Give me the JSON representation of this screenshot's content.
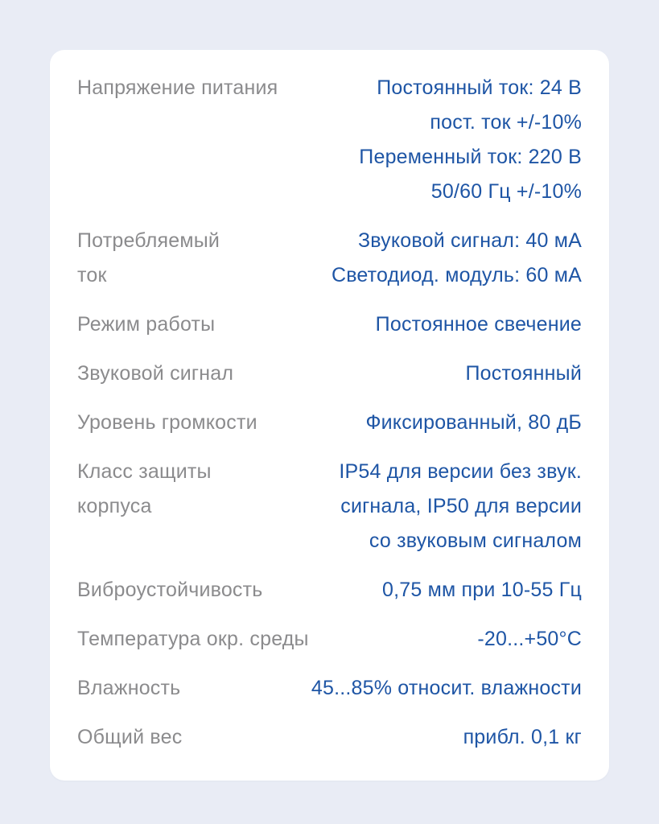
{
  "colors": {
    "background": "#E9ECF5",
    "card": "#FFFFFF",
    "label_text": "#8B8B8D",
    "value_text": "#1E55A5"
  },
  "spec_table": {
    "rows": [
      {
        "label": "Напряжение питания",
        "value": "Постоянный ток: 24 В\nпост. ток +/-10%\nПеременный ток: 220 В\n50/60 Гц +/-10%"
      },
      {
        "label": "Потребляемый\nток",
        "value": "Звуковой сигнал: 40 мА\nСветодиод. модуль: 60 мА"
      },
      {
        "label": "Режим работы",
        "value": "Постоянное свечение"
      },
      {
        "label": "Звуковой сигнал",
        "value": "Постоянный"
      },
      {
        "label": "Уровень громкости",
        "value": "Фиксированный, 80 дБ"
      },
      {
        "label": "Класс защиты\nкорпуса",
        "value": "IP54 для версии без звук.\nсигнала, IP50 для версии\nсо звуковым сигналом"
      },
      {
        "label": "Виброустойчивость",
        "value": "0,75 мм при 10-55 Гц"
      },
      {
        "label": "Температура окр. среды",
        "value": "-20...+50°C"
      },
      {
        "label": "Влажность",
        "value": "45...85% относит. влажности"
      },
      {
        "label": "Общий вес",
        "value": "прибл. 0,1 кг"
      }
    ]
  }
}
